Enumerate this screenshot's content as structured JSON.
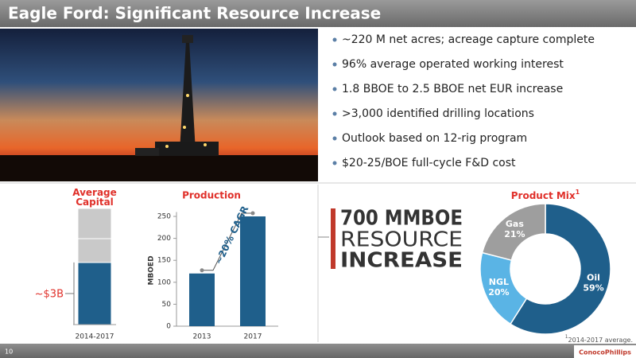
{
  "header": {
    "title": "Eagle Ford: Significant Resource Increase"
  },
  "bullets": [
    "~220 M net acres; acreage capture complete",
    "96% average operated working interest",
    "1.8 BBOE to 2.5 BBOE net EUR increase",
    ">3,000 identified drilling locations",
    "Outlook based on 12-rig program",
    "$20-25/BOE full-cycle F&D cost"
  ],
  "chart_data": [
    {
      "type": "stacked_bar",
      "title": "Average Capital",
      "categories": [
        "2014-2017"
      ],
      "series": [
        {
          "color": "#1f5f8b",
          "values": [
            3
          ],
          "value_labels": [
            "~$3B"
          ]
        },
        {
          "color": "#c9c9c9",
          "values": [
            1.15
          ]
        },
        {
          "color": "#c9c9c9",
          "values": [
            1.46
          ]
        }
      ]
    },
    {
      "type": "bar",
      "title": "Production",
      "y_label": "MBOED",
      "categories": [
        "2013",
        "2017"
      ],
      "values": [
        120,
        250
      ],
      "color": "#1f5f8b",
      "ylim": [
        0,
        260
      ],
      "yticks": [
        0,
        50,
        100,
        150,
        200,
        250
      ],
      "annotation": "~20% CAGR"
    },
    {
      "type": "donut",
      "title": "Product Mix",
      "title_note": "1",
      "categories": [
        "Oil",
        "NGL",
        "Gas"
      ],
      "values": [
        59,
        20,
        21
      ],
      "value_labels": [
        "59%",
        "20%",
        "21%"
      ],
      "colors": [
        "#1f5f8b",
        "#5ab4e5",
        "#9e9e9e"
      ]
    }
  ],
  "banner": {
    "lines": [
      "700 MMBOE",
      "RESOURCE",
      "INCREASE"
    ]
  },
  "footnote": {
    "marker": "1",
    "text": "2014-2017 average."
  },
  "page_number": "10",
  "logo": "ConocoPhillips"
}
